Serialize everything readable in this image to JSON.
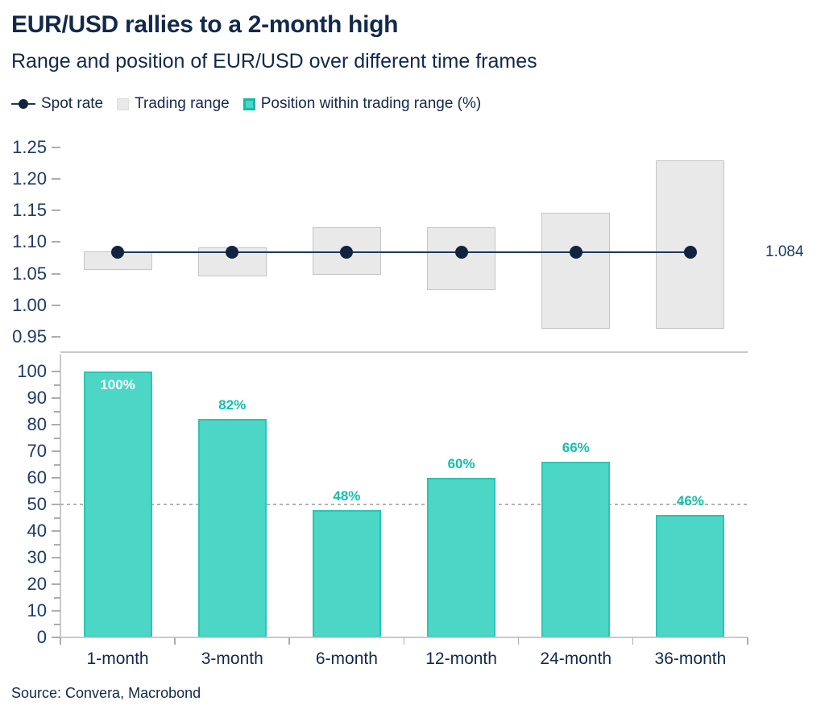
{
  "header": {
    "title": "EUR/USD rallies to a 2-month high",
    "subtitle": "Range and position of EUR/USD over different time frames"
  },
  "legend": {
    "position": "top",
    "items": [
      {
        "label": "Spot rate",
        "marker": "dot-on-line",
        "color": "#12233F"
      },
      {
        "label": "Trading range",
        "marker": "square",
        "color": "#E9E9E9"
      },
      {
        "label": "Position within trading range (%)",
        "marker": "square",
        "color": "#4BD6C5"
      }
    ]
  },
  "footer": {
    "source": "Source: Convera, Macrobond"
  },
  "colors": {
    "navy_text": "#13294B",
    "axis_label_navy": "#1E3A66",
    "teal_fill": "#4BD6C5",
    "teal_border": "#2BC5B3",
    "teal_label": "#12BFAA",
    "dot_navy": "#12233F",
    "spot_line_navy": "#1D3A5E",
    "range_box_fill": "#E9E9E9",
    "range_box_border": "#C5C5C5",
    "axis_line_gray": "#C9C9C9",
    "tick_gray": "#ADADAD",
    "dashed_line_gray": "#B3B3B3",
    "inside_label_white": "#FFFFFF"
  },
  "chart_data": [
    {
      "type": "scatter",
      "subtype": "range-boxes-with-spot-dots",
      "title": "Range of EUR/USD over different time frames",
      "categories": [
        "1-month",
        "3-month",
        "6-month",
        "12-month",
        "24-month",
        "36-month"
      ],
      "series": [
        {
          "name": "Trading range",
          "type": "range",
          "low": [
            1.056,
            1.046,
            1.048,
            1.024,
            0.963,
            0.963
          ],
          "high": [
            1.085,
            1.092,
            1.123,
            1.124,
            1.146,
            1.23
          ]
        },
        {
          "name": "Spot rate",
          "type": "line-with-dots",
          "values": [
            1.084,
            1.084,
            1.084,
            1.084,
            1.084,
            1.084
          ]
        }
      ],
      "end_label": "1.084",
      "ylim": [
        0.93,
        1.26
      ],
      "yticks": [
        0.95,
        1.0,
        1.05,
        1.1,
        1.15,
        1.2,
        1.25
      ],
      "ytick_labels": [
        "0.95",
        "1.00",
        "1.05",
        "1.10",
        "1.15",
        "1.20",
        "1.25"
      ],
      "grid": false,
      "legend_position": "top"
    },
    {
      "type": "bar",
      "title": "Position within trading range (%)",
      "categories": [
        "1-month",
        "3-month",
        "6-month",
        "12-month",
        "24-month",
        "36-month"
      ],
      "values": [
        100,
        82,
        48,
        60,
        66,
        46
      ],
      "bar_labels": [
        "100%",
        "82%",
        "48%",
        "60%",
        "66%",
        "46%"
      ],
      "label_inside": [
        true,
        false,
        false,
        false,
        false,
        false
      ],
      "ylim": [
        0,
        100
      ],
      "ytick_step": 10,
      "minor_tick_step": 5,
      "reference_line": 50,
      "grid": false,
      "xlabel": "",
      "ylabel": ""
    }
  ]
}
